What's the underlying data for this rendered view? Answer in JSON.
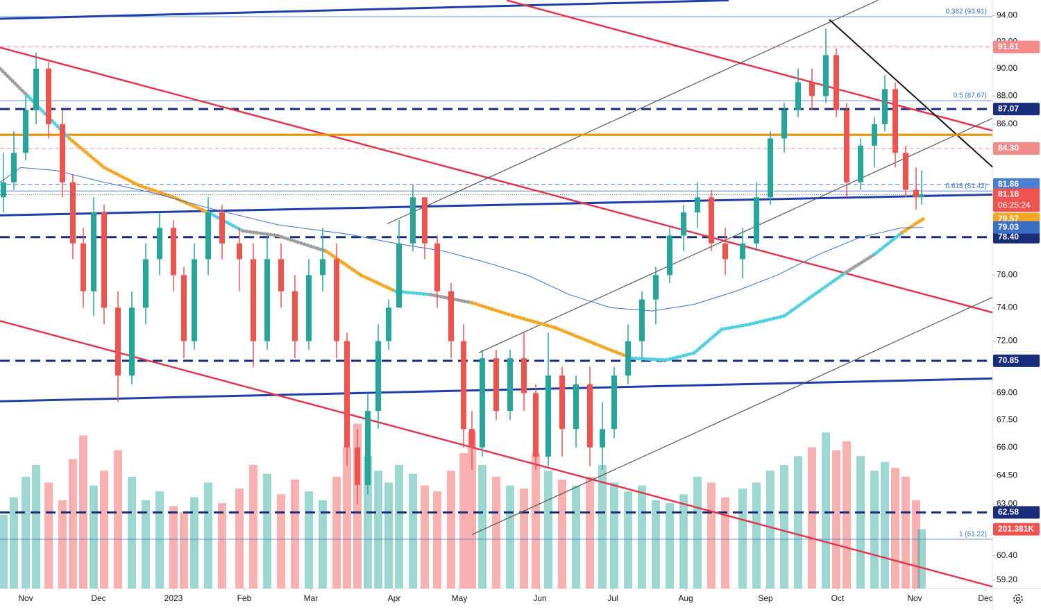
{
  "chart_data": {
    "type": "candlestick",
    "log_scale": true,
    "grid": false,
    "xlim": [
      -7.4,
      278.6
    ],
    "ylim": [
      58.8,
      95.2
    ],
    "volume_lim": [
      0,
      2000000
    ],
    "up_color": "#26a69a",
    "down_color": "#ef5350",
    "xticks": [
      {
        "value": 0,
        "label": "Nov"
      },
      {
        "value": 21,
        "label": "Dec"
      },
      {
        "value": 42.6,
        "label": "2023"
      },
      {
        "value": 63,
        "label": "Feb"
      },
      {
        "value": 82.2,
        "label": "Mar"
      },
      {
        "value": 106.2,
        "label": "Apr"
      },
      {
        "value": 125,
        "label": "May"
      },
      {
        "value": 148.2,
        "label": "Jun"
      },
      {
        "value": 169.2,
        "label": "Jul"
      },
      {
        "value": 190.2,
        "label": "Aug"
      },
      {
        "value": 213.2,
        "label": "Sep"
      },
      {
        "value": 234,
        "label": "Oct"
      },
      {
        "value": 256.2,
        "label": "Nov"
      },
      {
        "value": 276.6,
        "label": "Dec"
      }
    ],
    "yticks": [
      {
        "value": 94,
        "label": "94.00"
      },
      {
        "value": 92,
        "label": "92.00"
      },
      {
        "value": 90,
        "label": "90.00"
      },
      {
        "value": 88,
        "label": "88.00"
      },
      {
        "value": 86,
        "label": "86.00"
      },
      {
        "value": 76,
        "label": "76.00"
      },
      {
        "value": 74,
        "label": "74.00"
      },
      {
        "value": 72,
        "label": "72.00"
      },
      {
        "value": 69,
        "label": "69.00"
      },
      {
        "value": 67.5,
        "label": "67.50"
      },
      {
        "value": 66,
        "label": "66.00"
      },
      {
        "value": 64.5,
        "label": "64.50"
      },
      {
        "value": 63,
        "label": "63.00"
      },
      {
        "value": 60.4,
        "label": "60.40"
      },
      {
        "value": 59.2,
        "label": "59.20"
      }
    ],
    "candles": {
      "x": [
        -6.4,
        -3.4,
        0,
        3,
        6.6,
        10.6,
        13.6,
        16.6,
        19.6,
        22.6,
        26.6,
        30.6,
        34.6,
        38.6,
        42.6,
        45.6,
        48.6,
        52.6,
        56.6,
        61.6,
        65.6,
        69.6,
        73.6,
        77.6,
        81.6,
        85.6,
        89.6,
        92.6,
        95.6,
        98.6,
        101.6,
        104.6,
        107.6,
        111.6,
        115,
        118.6,
        122.6,
        126.2,
        128.6,
        131.6,
        135.6,
        139.6,
        143.6,
        147,
        150.6,
        154.6,
        158.6,
        162.6,
        166.2,
        169.6,
        173.6,
        177.6,
        181.6,
        185.6,
        189.6,
        193.6,
        197.6,
        201.6,
        206.6,
        210.6,
        214.6,
        218.6,
        222.6,
        226.6,
        230.6,
        233.6,
        236.6,
        240.6,
        244.6,
        247.6,
        250.6,
        253.6,
        256.6,
        258.2
      ],
      "open": [
        81,
        82,
        84,
        87,
        90,
        86,
        82,
        78,
        75,
        80,
        74,
        70,
        74,
        77,
        79,
        76,
        72,
        77,
        80,
        78,
        77,
        72,
        77,
        75,
        72,
        76,
        77,
        72,
        66,
        64,
        68,
        72,
        74,
        78,
        81,
        78,
        75,
        72,
        67,
        66,
        71,
        68,
        71,
        69,
        65.5,
        70,
        67,
        69.5,
        66,
        67,
        70,
        72,
        74.5,
        76,
        78.5,
        80,
        81,
        78,
        77,
        78,
        81,
        85,
        87,
        89,
        88,
        91,
        87,
        82,
        84.5,
        86,
        88.5,
        84,
        81.5,
        81
      ],
      "high": [
        84,
        85.5,
        88,
        91.2,
        90.5,
        87,
        82.5,
        79,
        81,
        80.5,
        75,
        75,
        78,
        80,
        79.5,
        76.5,
        78,
        81,
        80.5,
        79,
        78,
        78.5,
        78,
        76,
        77,
        79,
        78,
        72.5,
        67,
        69,
        73,
        74.5,
        79.5,
        81.8,
        81,
        78.5,
        75.5,
        73,
        68,
        71.5,
        71.5,
        71.5,
        72.5,
        69.5,
        72.5,
        70.5,
        70,
        70.5,
        68.5,
        70.5,
        73,
        75,
        76.5,
        79,
        80.5,
        82,
        81.5,
        79,
        79,
        82,
        85.5,
        87.5,
        90,
        90,
        93,
        91.5,
        87.5,
        85,
        86.5,
        89.5,
        89,
        84.5,
        83,
        82.8
      ],
      "low": [
        80,
        81.5,
        83.5,
        86,
        85,
        81,
        77,
        74,
        73.5,
        73,
        68.5,
        69.5,
        73,
        76,
        75,
        71,
        71.5,
        76,
        77,
        75,
        70.5,
        71.5,
        74,
        71,
        71.5,
        75,
        71,
        65,
        63,
        63.5,
        67,
        71.5,
        77,
        77.5,
        77,
        74,
        71,
        66,
        64.8,
        65.5,
        67.5,
        67.5,
        68,
        64.8,
        65,
        65.5,
        66,
        65,
        64.8,
        66.5,
        69.5,
        71,
        73,
        75.5,
        77.5,
        79,
        77.5,
        76,
        75.8,
        77.5,
        80.5,
        84,
        86.5,
        87,
        87.5,
        86.5,
        81,
        81.5,
        83,
        85.5,
        83,
        81,
        80.2,
        80.5
      ],
      "close": [
        82,
        84,
        87,
        90,
        86,
        82,
        78,
        75,
        80,
        74,
        70,
        74,
        77,
        79,
        76,
        72,
        77,
        80,
        78,
        77,
        72,
        77,
        75,
        72,
        76,
        77,
        72,
        66,
        64,
        68,
        72,
        74,
        78,
        81,
        78,
        75,
        72,
        67,
        66,
        71,
        68,
        71,
        69,
        65.5,
        70,
        67,
        69.5,
        66,
        67,
        70,
        72,
        74.5,
        76,
        78.5,
        80,
        81,
        78,
        77,
        78,
        81,
        85,
        87,
        89,
        88,
        91,
        87,
        82,
        84.5,
        86,
        88.5,
        84,
        81.5,
        81,
        81.18
      ],
      "volume": [
        250000,
        310000,
        380000,
        420000,
        360000,
        300000,
        440000,
        520000,
        350000,
        400000,
        470000,
        380000,
        300000,
        330000,
        280000,
        260000,
        310000,
        360000,
        290000,
        340000,
        420000,
        390000,
        320000,
        370000,
        330000,
        300000,
        380000,
        480000,
        560000,
        450000,
        400000,
        360000,
        420000,
        390000,
        350000,
        330000,
        400000,
        460000,
        530000,
        420000,
        380000,
        350000,
        340000,
        460000,
        400000,
        370000,
        350000,
        380000,
        420000,
        360000,
        330000,
        350000,
        300000,
        290000,
        320000,
        380000,
        360000,
        310000,
        340000,
        360000,
        400000,
        420000,
        450000,
        480000,
        530000,
        470000,
        500000,
        450000,
        400000,
        430000,
        410000,
        380000,
        300000,
        201381
      ],
      "volume_last_label": "201.381K",
      "countdown": "06:25:24"
    },
    "moving_averages": [
      {
        "width": 5,
        "x": [
          -7.4,
          0.6,
          12.6,
          22.6,
          32.6,
          42.6,
          52.6,
          62.6,
          72.6,
          86.6,
          96.6,
          106.6,
          116.6,
          128.6,
          140.6,
          152.6,
          164.6,
          174.6,
          184.6,
          192.6,
          200.6,
          208.6,
          218.6,
          228.6,
          236.6,
          244.6,
          252.6,
          258.6
        ],
        "values": [
          90,
          88,
          85,
          83,
          81.8,
          81,
          80,
          78.8,
          78.5,
          77.5,
          76,
          75,
          74.8,
          74.3,
          73.5,
          72.8,
          71.8,
          71,
          70.9,
          71.3,
          72.7,
          73,
          73.5,
          75,
          76.2,
          77.3,
          78.7,
          79.57
        ],
        "colors": [
          "#9e9e9e",
          "#9e9e9e",
          "#4fd1e0",
          "#f5a623",
          "#f5a623",
          "#f5a623",
          "#f5a623",
          "#4fd1e0",
          "#9e9e9e",
          "#9e9e9e",
          "#f5a623",
          "#f5a623",
          "#4fd1e0",
          "#9e9e9e",
          "#f5a623",
          "#f5a623",
          "#f5a623",
          "#f5a623",
          "#4fd1e0",
          "#4fd1e0",
          "#4fd1e0",
          "#4fd1e0",
          "#4fd1e0",
          "#4fd1e0",
          "#4fd1e0",
          "#9e9e9e",
          "#4fd1e0",
          "#f5a623"
        ]
      },
      {
        "width": 1,
        "color": "#3a6fc4",
        "x": [
          -7.4,
          -1.4,
          8.6,
          22.6,
          36.6,
          52.6,
          72.6,
          92.6,
          106.6,
          120.6,
          132.6,
          144.6,
          156.6,
          168.6,
          180.6,
          192.6,
          204.6,
          216.6,
          228.6,
          240.6,
          252.6,
          258.6
        ],
        "values": [
          82,
          83,
          82.8,
          82,
          81.3,
          80.3,
          79.2,
          78.6,
          78,
          77.5,
          76.8,
          76,
          74.8,
          74,
          73.8,
          74.2,
          75,
          76,
          77.3,
          78.4,
          79,
          79.03
        ]
      }
    ],
    "trendlines": [
      {
        "color": "#1f3fa8",
        "width": 3,
        "x": [
          -7.4,
          202.6
        ],
        "y": [
          93.75,
          95.18
        ]
      },
      {
        "color": "#1f3fa8",
        "width": 3,
        "x": [
          -7.4,
          278.6
        ],
        "y": [
          79.81,
          81.18
        ]
      },
      {
        "color": "#1f3fa8",
        "width": 3,
        "x": [
          -7.4,
          278.6
        ],
        "y": [
          68.54,
          69.83
        ]
      },
      {
        "color": "#e0374f",
        "width": 2.5,
        "x": [
          138.6,
          278.6
        ],
        "y": [
          95.18,
          85.54
        ]
      },
      {
        "color": "#e0374f",
        "width": 2.5,
        "x": [
          -7.4,
          278.6
        ],
        "y": [
          91.57,
          73.71
        ]
      },
      {
        "color": "#e0374f",
        "width": 2.5,
        "x": [
          -7.4,
          278.6
        ],
        "y": [
          73.2,
          58.89
        ]
      },
      {
        "color": "#555555",
        "width": 1.2,
        "x": [
          104.2,
          245.6
        ],
        "y": [
          79.26,
          95.18
        ]
      },
      {
        "color": "#555555",
        "width": 1.2,
        "x": [
          130.6,
          278.6
        ],
        "y": [
          71.32,
          86.41
        ]
      },
      {
        "color": "#555555",
        "width": 1.2,
        "x": [
          128.6,
          278.6
        ],
        "y": [
          61.45,
          74.63
        ]
      },
      {
        "color": "#111111",
        "width": 2,
        "x": [
          231.6,
          278.6
        ],
        "y": [
          93.68,
          83.04
        ]
      },
      {
        "color": "#f08c00",
        "width": 3,
        "x": [
          -7.4,
          278.6
        ],
        "y": [
          85.25,
          85.25
        ]
      }
    ],
    "levels": [
      {
        "value": 91.61,
        "color": "#f48a8a",
        "style": "dashed"
      },
      {
        "value": 87.07,
        "color": "#1a2d7a",
        "style": "thick"
      },
      {
        "value": 84.3,
        "label": "84.30",
        "color": "#f48a8a",
        "style": "dashed"
      },
      {
        "value": 81.86,
        "color": "#4a7fd4",
        "style": "dashed"
      },
      {
        "value": 78.4,
        "label": "78.40",
        "color": "#1a2d7a",
        "style": "thick"
      },
      {
        "value": 70.85,
        "color": "#1a2d7a",
        "style": "thick"
      },
      {
        "value": 62.58,
        "color": "#1a2d7a",
        "style": "thick"
      }
    ],
    "fib_color": "#3a6fc4",
    "fib_levels": [
      {
        "value": 93.91,
        "label": "0.382 (93.91)"
      },
      {
        "value": 87.67,
        "label": "0.5 (87.67)"
      },
      {
        "value": 81.42,
        "label": "0.618 (81.42)"
      },
      {
        "value": 61.22,
        "label": "1 (61.22)"
      }
    ]
  }
}
